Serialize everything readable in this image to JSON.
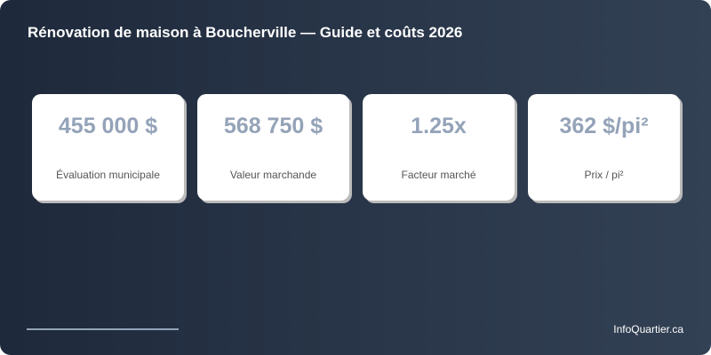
{
  "title": "Rénovation de maison à Boucherville — Guide et coûts 2026",
  "cards": [
    {
      "value": "455 000 $",
      "label": "Évaluation municipale"
    },
    {
      "value": "568 750 $",
      "label": "Valeur marchande"
    },
    {
      "value": "1.25x",
      "label": "Facteur marché"
    },
    {
      "value": "362 $/pi²",
      "label": "Prix / pi²"
    }
  ],
  "footer": {
    "brand": "InfoQuartier.ca"
  },
  "colors": {
    "accent": "#94a3b8",
    "background_start": "#1e293b",
    "background_end": "#334155"
  }
}
